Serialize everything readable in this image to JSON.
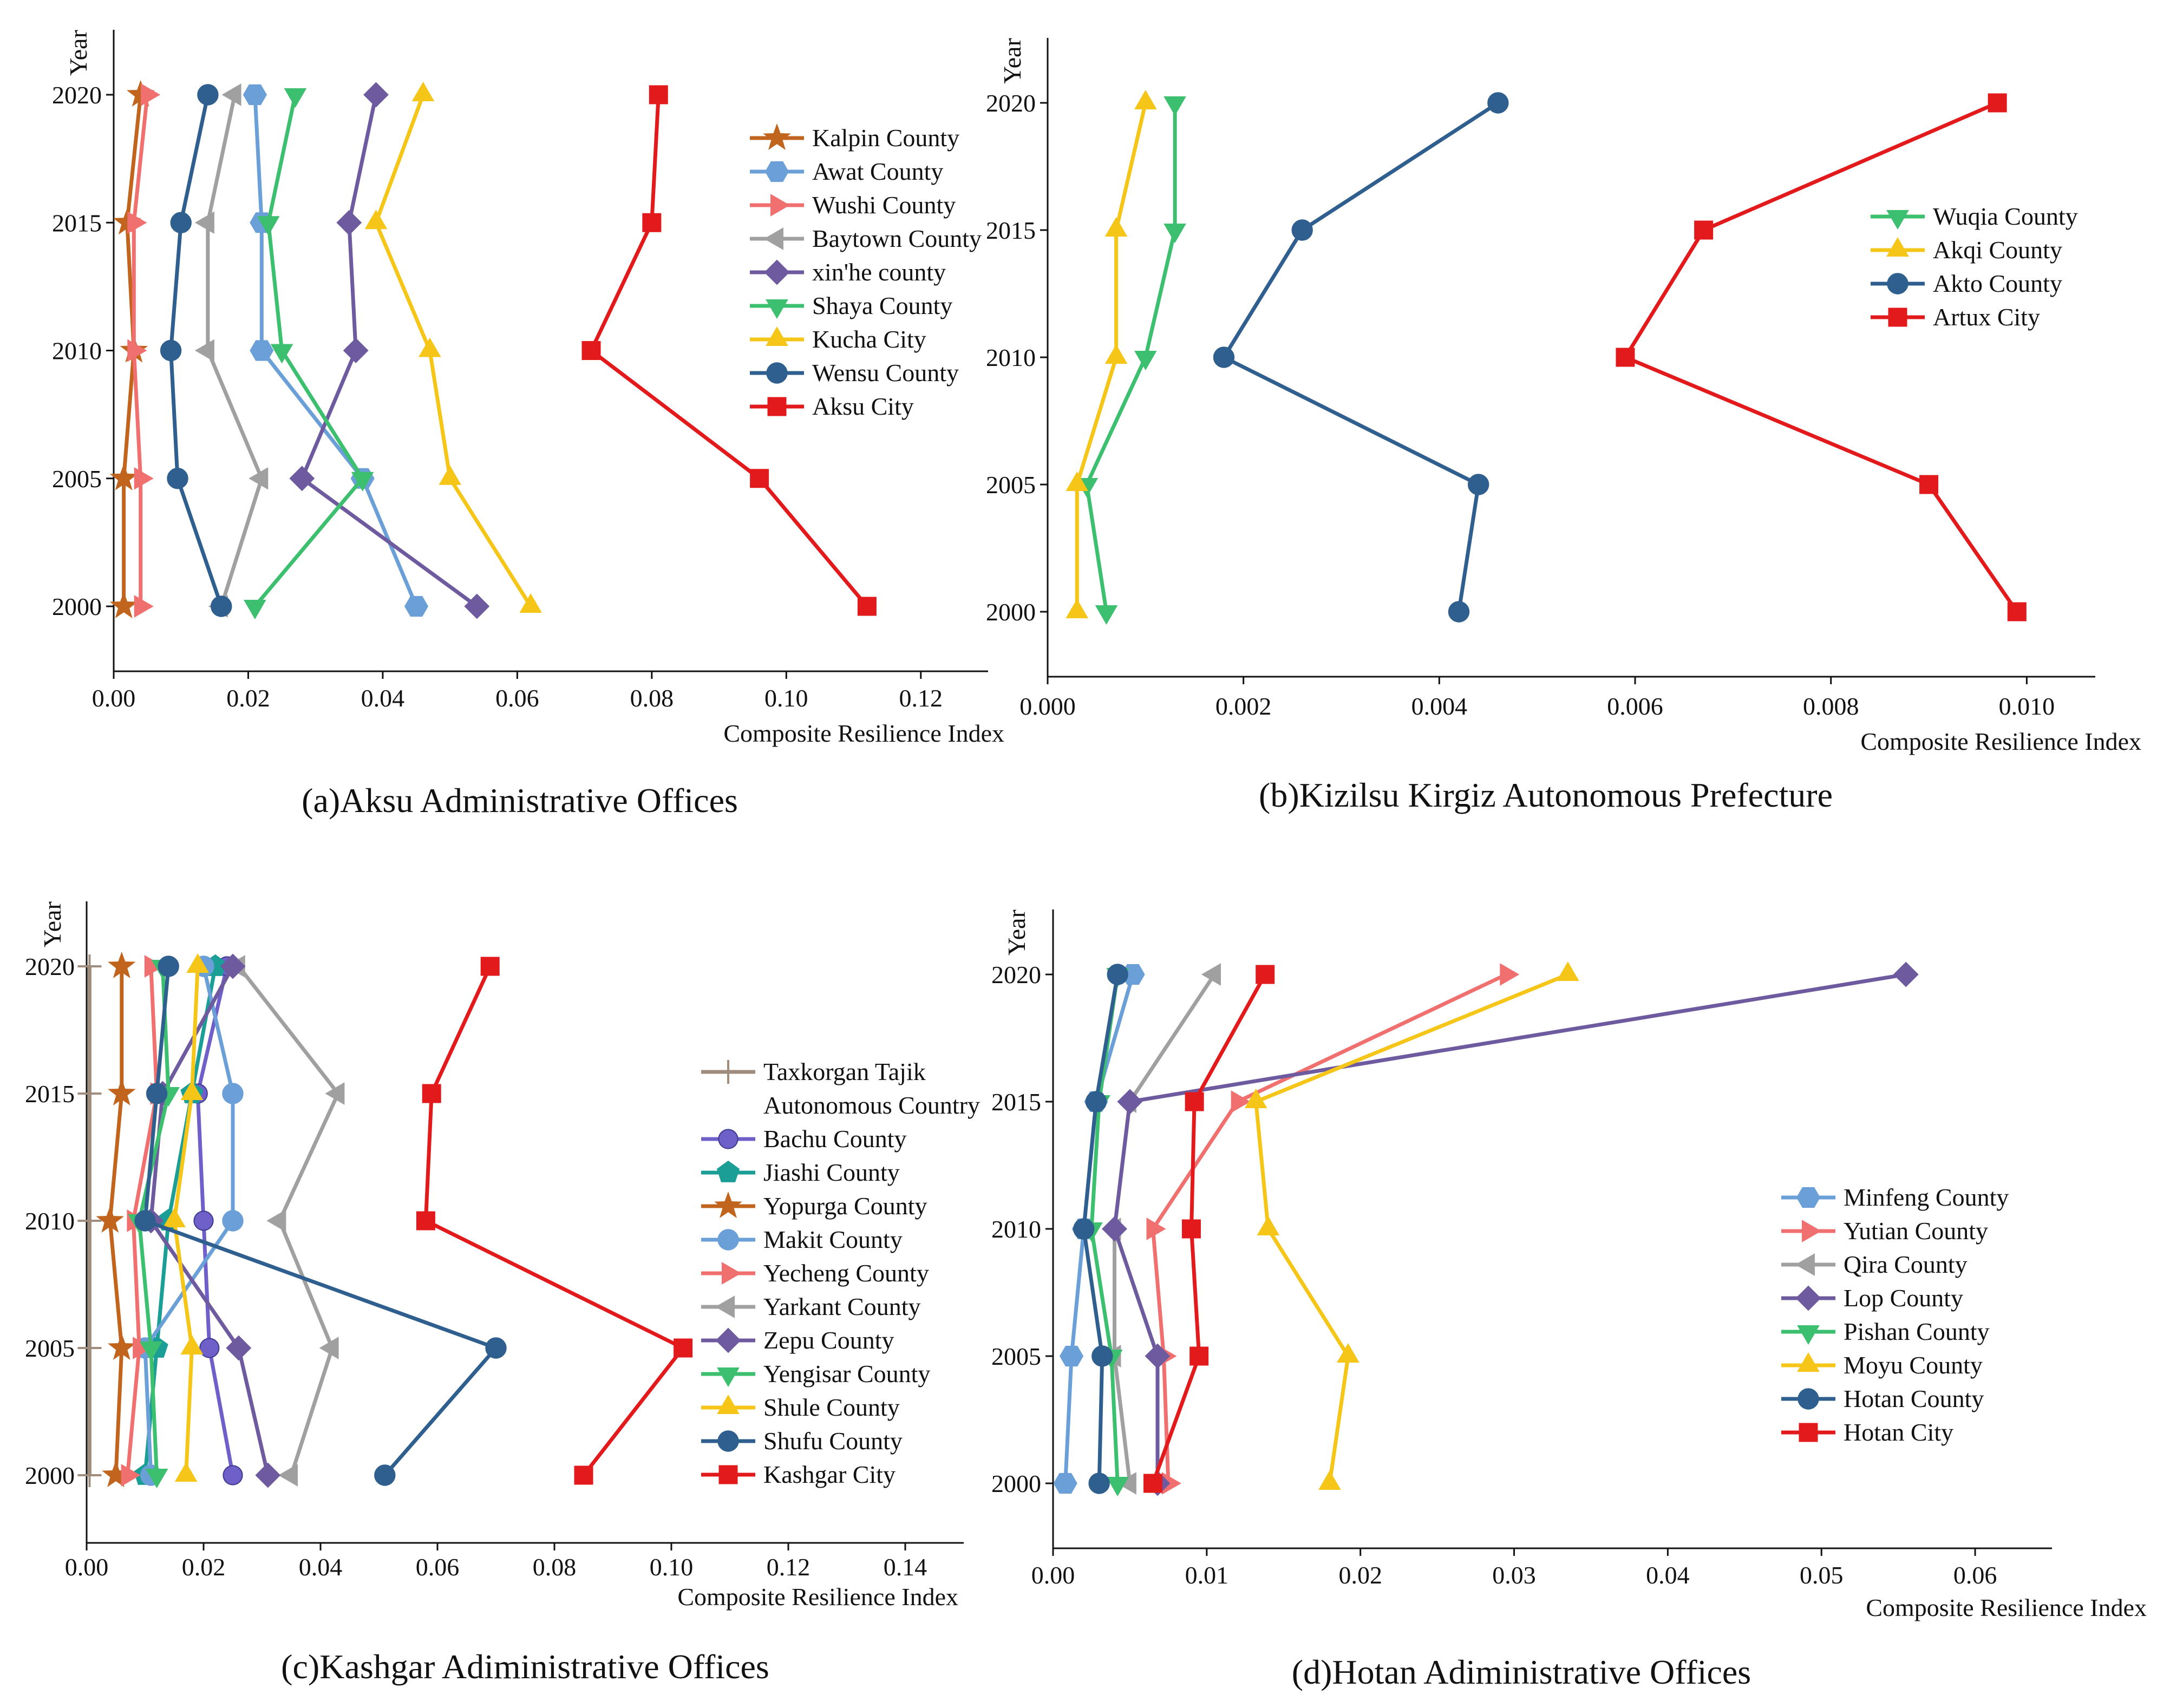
{
  "chart_data": [
    {
      "type": "line",
      "orientation": "horizontal",
      "title": "(a)Aksu Administrative Offices",
      "xlabel": "Composite Resilience Index",
      "ylabel": "Year",
      "xlim": [
        0,
        0.13
      ],
      "xticks": [
        0,
        0.02,
        0.04,
        0.06,
        0.08,
        0.1,
        0.12
      ],
      "xtick_labels": [
        "0.00",
        "0.02",
        "0.04",
        "0.06",
        "0.08",
        "0.10",
        "0.12"
      ],
      "years": [
        2000,
        2005,
        2010,
        2015,
        2020
      ],
      "legend_position": "right",
      "series": [
        {
          "name": "Kalpin County",
          "color": "#c0641e",
          "marker": "star",
          "values": [
            0.0015,
            0.0015,
            0.003,
            0.002,
            0.004
          ]
        },
        {
          "name": "Awat County",
          "color": "#6a9fd8",
          "marker": "hexagon",
          "values": [
            0.045,
            0.037,
            0.022,
            0.022,
            0.021
          ]
        },
        {
          "name": "Wushi County",
          "color": "#f07070",
          "marker": "tri-right",
          "values": [
            0.004,
            0.004,
            0.003,
            0.003,
            0.005
          ]
        },
        {
          "name": "Baytown County",
          "color": "#a0a0a0",
          "marker": "tri-left",
          "values": [
            0.016,
            0.022,
            0.014,
            0.014,
            0.018
          ]
        },
        {
          "name": "xin'he county",
          "color": "#6e5a9e",
          "marker": "diamond",
          "values": [
            0.054,
            0.028,
            0.036,
            0.035,
            0.039
          ]
        },
        {
          "name": "Shaya County",
          "color": "#3cbf6e",
          "marker": "tri-down",
          "values": [
            0.021,
            0.037,
            0.025,
            0.023,
            0.027
          ]
        },
        {
          "name": "Kucha City",
          "color": "#f5c518",
          "marker": "tri-up",
          "values": [
            0.062,
            0.05,
            0.047,
            0.039,
            0.046
          ]
        },
        {
          "name": "Wensu County",
          "color": "#2f5f8e",
          "marker": "circle",
          "values": [
            0.016,
            0.0095,
            0.0085,
            0.01,
            0.014
          ]
        },
        {
          "name": "Aksu City",
          "color": "#e31a1c",
          "marker": "square",
          "values": [
            0.112,
            0.096,
            0.071,
            0.08,
            0.081
          ]
        }
      ]
    },
    {
      "type": "line",
      "orientation": "horizontal",
      "title": "(b)Kizilsu Kirgiz Autonomous Prefecture",
      "xlabel": "Composite Resilience Index",
      "ylabel": "Year",
      "xlim": [
        0,
        0.0107
      ],
      "xticks": [
        0,
        0.002,
        0.004,
        0.006,
        0.008,
        0.01
      ],
      "xtick_labels": [
        "0.000",
        "0.002",
        "0.004",
        "0.006",
        "0.008",
        "0.010"
      ],
      "years": [
        2000,
        2005,
        2010,
        2015,
        2020
      ],
      "legend_position": "right",
      "series": [
        {
          "name": "Wuqia County",
          "color": "#3cbf6e",
          "marker": "tri-down",
          "values": [
            0.0006,
            0.0004,
            0.001,
            0.0013,
            0.0013
          ]
        },
        {
          "name": "Akqi  County",
          "color": "#f5c518",
          "marker": "tri-up",
          "values": [
            0.0003,
            0.0003,
            0.0007,
            0.0007,
            0.001
          ]
        },
        {
          "name": "Akto County",
          "color": "#2f5f8e",
          "marker": "circle",
          "values": [
            0.0042,
            0.0044,
            0.0018,
            0.0026,
            0.0046
          ]
        },
        {
          "name": "Artux City",
          "color": "#e31a1c",
          "marker": "square",
          "values": [
            0.0099,
            0.009,
            0.0059,
            0.0067,
            0.0097
          ]
        }
      ]
    },
    {
      "type": "line",
      "orientation": "horizontal",
      "title": "(c)Kashgar Adiministrative Offices",
      "xlabel": "Composite Resilience Index",
      "ylabel": "Year",
      "xlim": [
        0,
        0.15
      ],
      "xticks": [
        0,
        0.02,
        0.04,
        0.06,
        0.08,
        0.1,
        0.12,
        0.14
      ],
      "xtick_labels": [
        "0.00",
        "0.02",
        "0.04",
        "0.06",
        "0.08",
        "0.10",
        "0.12",
        "0.14"
      ],
      "years": [
        2000,
        2005,
        2010,
        2015,
        2020
      ],
      "legend_position": "right",
      "series": [
        {
          "name": "Taxkorgan Tajik\nAutonomous Country",
          "color": "#a08c7c",
          "marker": "plus",
          "values": [
            0.0005,
            0.0005,
            0.0005,
            0.0005,
            0.0005
          ]
        },
        {
          "name": "Bachu  County",
          "color": "#6e60c8",
          "marker": "sphere",
          "values": [
            0.025,
            0.021,
            0.02,
            0.019,
            0.024
          ]
        },
        {
          "name": "Jiashi County",
          "color": "#1a9e96",
          "marker": "pentagon",
          "values": [
            0.01,
            0.012,
            0.014,
            0.018,
            0.022
          ]
        },
        {
          "name": "Yopurga County",
          "color": "#c0641e",
          "marker": "star",
          "values": [
            0.005,
            0.006,
            0.004,
            0.006,
            0.006
          ]
        },
        {
          "name": "Makit County",
          "color": "#6a9fd8",
          "marker": "circle",
          "values": [
            0.011,
            0.01,
            0.025,
            0.025,
            0.02
          ]
        },
        {
          "name": "Yecheng County",
          "color": "#f07070",
          "marker": "tri-right",
          "values": [
            0.007,
            0.009,
            0.008,
            0.012,
            0.011
          ]
        },
        {
          "name": "Yarkant County",
          "color": "#a0a0a0",
          "marker": "tri-left",
          "values": [
            0.035,
            0.042,
            0.033,
            0.043,
            0.026
          ]
        },
        {
          "name": "Zepu County",
          "color": "#6e5a9e",
          "marker": "diamond",
          "values": [
            0.031,
            0.026,
            0.011,
            0.013,
            0.025
          ]
        },
        {
          "name": "Yengisar County",
          "color": "#3cbf6e",
          "marker": "tri-down",
          "values": [
            0.012,
            0.011,
            0.009,
            0.014,
            0.013
          ]
        },
        {
          "name": "Shule County",
          "color": "#f5c518",
          "marker": "tri-up",
          "values": [
            0.017,
            0.018,
            0.015,
            0.018,
            0.019
          ]
        },
        {
          "name": "Shufu County",
          "color": "#2f5f8e",
          "marker": "circle",
          "values": [
            0.051,
            0.07,
            0.01,
            0.012,
            0.014
          ]
        },
        {
          "name": "Kashgar City",
          "color": "#e31a1c",
          "marker": "square",
          "values": [
            0.085,
            0.102,
            0.058,
            0.059,
            0.069
          ]
        }
      ]
    },
    {
      "type": "line",
      "orientation": "horizontal",
      "title": "(d)Hotan Adiministrative Offices",
      "xlabel": "Composite Resilience Index",
      "ylabel": "Year",
      "xlim": [
        0,
        0.065
      ],
      "xticks": [
        0,
        0.01,
        0.02,
        0.03,
        0.04,
        0.05,
        0.06
      ],
      "xtick_labels": [
        "0.00",
        "0.01",
        "0.02",
        "0.03",
        "0.04",
        "0.05",
        "0.06"
      ],
      "years": [
        2000,
        2005,
        2010,
        2015,
        2020
      ],
      "legend_position": "right",
      "series": [
        {
          "name": "Minfeng County",
          "color": "#6a9fd8",
          "marker": "hexagon",
          "values": [
            0.0008,
            0.0012,
            0.002,
            0.0028,
            0.0052
          ]
        },
        {
          "name": "Yutian County",
          "color": "#f07070",
          "marker": "tri-right",
          "values": [
            0.0075,
            0.0072,
            0.0065,
            0.012,
            0.0295
          ]
        },
        {
          "name": "Qira County",
          "color": "#a0a0a0",
          "marker": "tri-left",
          "values": [
            0.005,
            0.004,
            0.004,
            0.005,
            0.0105
          ]
        },
        {
          "name": "Lop County",
          "color": "#6e5a9e",
          "marker": "diamond",
          "values": [
            0.0068,
            0.0068,
            0.004,
            0.005,
            0.0555
          ]
        },
        {
          "name": "Pishan County",
          "color": "#3cbf6e",
          "marker": "tri-down",
          "values": [
            0.0042,
            0.0038,
            0.0025,
            0.003,
            0.0042
          ]
        },
        {
          "name": "Moyu County",
          "color": "#f5c518",
          "marker": "tri-up",
          "values": [
            0.018,
            0.0192,
            0.014,
            0.0132,
            0.0335
          ]
        },
        {
          "name": "Hotan County",
          "color": "#2f5f8e",
          "marker": "circle",
          "values": [
            0.003,
            0.0032,
            0.002,
            0.0028,
            0.0042
          ]
        },
        {
          "name": "Hotan City",
          "color": "#e31a1c",
          "marker": "square",
          "values": [
            0.0065,
            0.0095,
            0.009,
            0.0092,
            0.0138
          ]
        }
      ]
    }
  ]
}
